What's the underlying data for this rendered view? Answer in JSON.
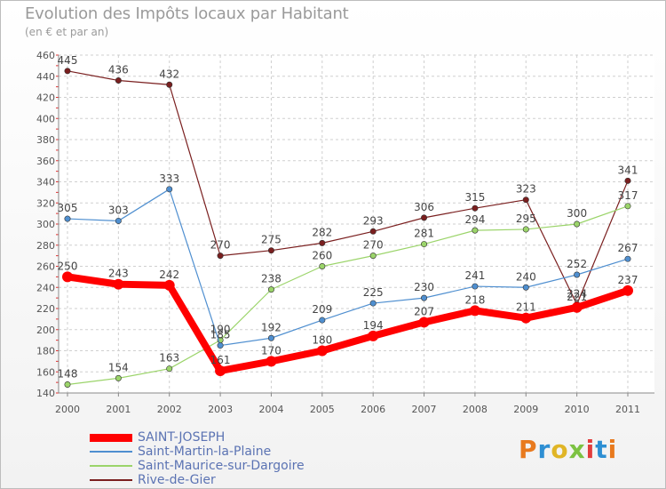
{
  "chart_data": {
    "type": "line",
    "title": "Evolution des Impôts locaux par Habitant",
    "subtitle": "(en € et par an)",
    "categories": [
      "2000",
      "2001",
      "2002",
      "2003",
      "2004",
      "2005",
      "2006",
      "2007",
      "2008",
      "2009",
      "2010",
      "2011"
    ],
    "ylim": [
      140,
      460
    ],
    "yticks": [
      140,
      160,
      180,
      200,
      220,
      240,
      260,
      280,
      300,
      320,
      340,
      360,
      380,
      400,
      420,
      440,
      460
    ],
    "grid": true,
    "legend_position": "bottom-left",
    "series": [
      {
        "name": "SAINT-JOSEPH",
        "color": "#ff0000",
        "values": [
          250,
          243,
          242,
          161,
          170,
          180,
          194,
          207,
          218,
          211,
          221,
          237
        ]
      },
      {
        "name": "Saint-Martin-la-Plaine",
        "color": "#4f8fd0",
        "values": [
          305,
          303,
          333,
          185,
          192,
          209,
          225,
          230,
          241,
          240,
          252,
          267
        ]
      },
      {
        "name": "Saint-Maurice-sur-Dargoire",
        "color": "#9bd46a",
        "values": [
          148,
          154,
          163,
          190,
          238,
          260,
          270,
          281,
          294,
          295,
          300,
          317
        ]
      },
      {
        "name": "Rive-de-Gier",
        "color": "#7a1f1f",
        "values": [
          445,
          436,
          432,
          270,
          275,
          282,
          293,
          306,
          315,
          323,
          224,
          341
        ]
      }
    ]
  },
  "logo": {
    "text": "Proxiti",
    "colors": [
      "#e87a1e",
      "#2e8fd3",
      "#e0b526",
      "#7cc242",
      "#e23d3d",
      "#2e8fd3",
      "#e87a1e"
    ]
  }
}
